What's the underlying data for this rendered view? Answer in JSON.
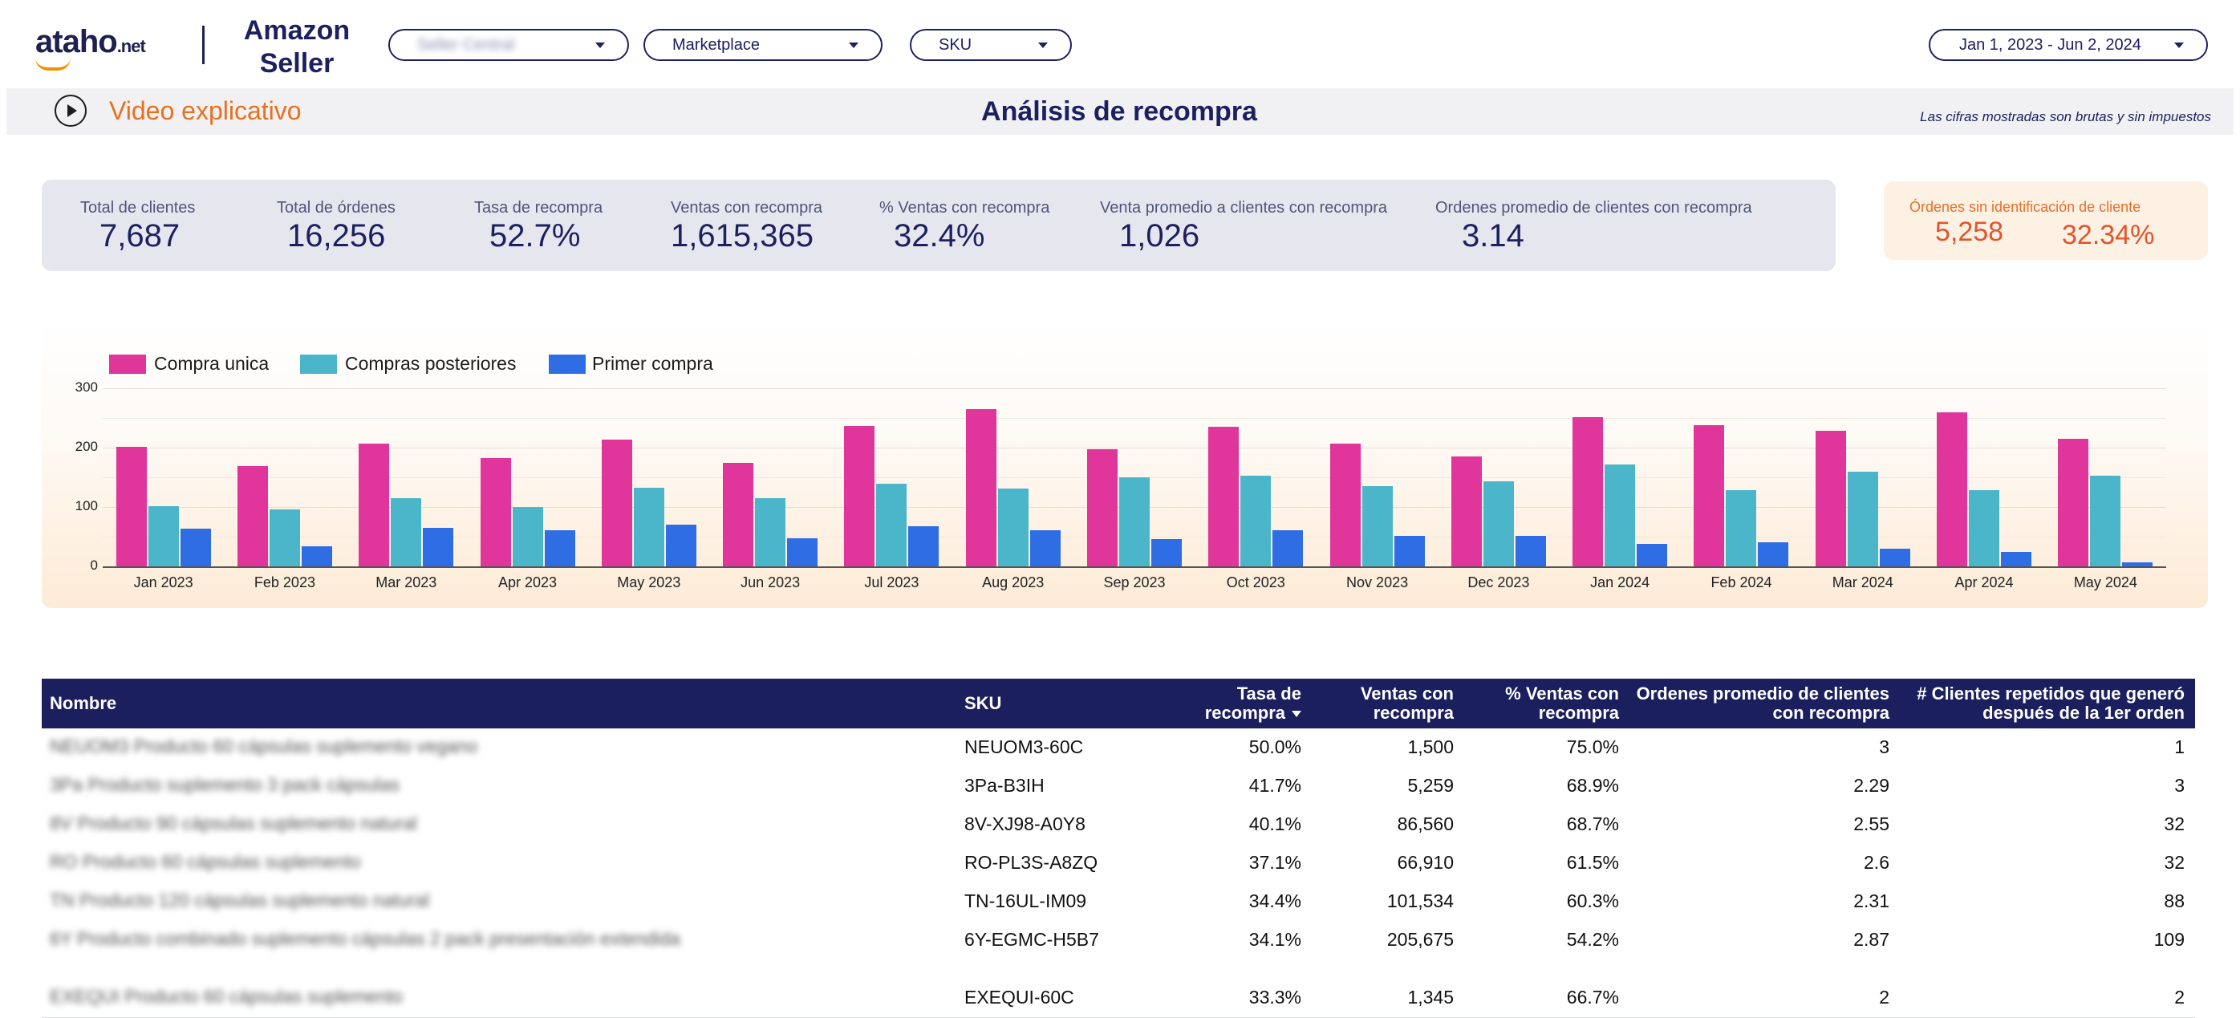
{
  "header": {
    "logo_main": "ataho",
    "logo_suffix": ".net",
    "brand_title": "Amazon Seller",
    "filters": {
      "account": "Seller Central",
      "marketplace": "Marketplace",
      "sku": "SKU",
      "date_range": "Jan 1, 2023 - Jun 2, 2024"
    }
  },
  "titlebar": {
    "video_link": "Video explicativo",
    "title": "Análisis de recompra",
    "disclaimer": "Las cifras mostradas son brutas y sin impuestos"
  },
  "kpis": [
    {
      "label": "Total de clientes",
      "value": "7,687"
    },
    {
      "label": "Total de órdenes",
      "value": "16,256"
    },
    {
      "label": "Tasa de recompra",
      "value": "52.7%"
    },
    {
      "label": "Ventas con recompra",
      "value": "1,615,365"
    },
    {
      "label": "% Ventas con recompra",
      "value": "32.4%"
    },
    {
      "label": "Venta promedio a clientes con recompra",
      "value": "1,026"
    },
    {
      "label": "Ordenes promedio de clientes con recompra",
      "value": "3.14"
    }
  ],
  "unidentified": {
    "label": "Órdenes sin identificación de cliente",
    "count": "5,258",
    "percent": "32.34%"
  },
  "colors": {
    "compra_unica": "#e0359a",
    "compras_posteriores": "#4bb6c9",
    "primer_compra": "#2f6de4",
    "navy": "#1b1f5e",
    "orange": "#e8701f"
  },
  "chart_data": {
    "type": "bar",
    "ylim": [
      0,
      300
    ],
    "yticks": [
      "0",
      "100",
      "200",
      "300"
    ],
    "categories": [
      "Jan 2023",
      "Feb 2023",
      "Mar 2023",
      "Apr 2023",
      "May 2023",
      "Jun 2023",
      "Jul 2023",
      "Aug 2023",
      "Sep 2023",
      "Oct 2023",
      "Nov 2023",
      "Dec 2023",
      "Jan 2024",
      "Feb 2024",
      "Mar 2024",
      "Apr 2024",
      "May 2024"
    ],
    "series": [
      {
        "name": "Compra unica",
        "color": "#e0359a",
        "values": [
          201,
          169,
          207,
          182,
          213,
          174,
          236,
          265,
          197,
          235,
          207,
          185,
          252,
          238,
          228,
          259,
          215
        ]
      },
      {
        "name": "Compras posteriores",
        "color": "#4bb6c9",
        "values": [
          102,
          96,
          115,
          100,
          133,
          115,
          139,
          131,
          150,
          153,
          135,
          143,
          172,
          128,
          159,
          129,
          153
        ]
      },
      {
        "name": "Primer compra",
        "color": "#2f6de4",
        "values": [
          63,
          34,
          65,
          61,
          70,
          47,
          67,
          61,
          46,
          61,
          51,
          51,
          38,
          40,
          30,
          24,
          7
        ]
      }
    ],
    "grid": true,
    "legend": "top-left"
  },
  "table": {
    "columns": [
      "Nombre",
      "SKU",
      "Tasa de recompra",
      "Ventas con recompra",
      "% Ventas con recompra",
      "Ordenes promedio de clientes con recompra",
      "# Clientes repetidos que generó después de la 1er orden"
    ],
    "rows": [
      {
        "name": "NEUOM3 Producto 60 cápsulas suplemento vegano",
        "sku": "NEUOM3-60C",
        "tasa": "50.0%",
        "ventas": "1,500",
        "pct": "75.0%",
        "ordenes": "3",
        "clientes": "1"
      },
      {
        "name": "3Pa Producto suplemento 3 pack cápsulas",
        "sku": "3Pa-B3IH",
        "tasa": "41.7%",
        "ventas": "5,259",
        "pct": "68.9%",
        "ordenes": "2.29",
        "clientes": "3"
      },
      {
        "name": "8V Producto 90 cápsulas suplemento natural",
        "sku": "8V-XJ98-A0Y8",
        "tasa": "40.1%",
        "ventas": "86,560",
        "pct": "68.7%",
        "ordenes": "2.55",
        "clientes": "32"
      },
      {
        "name": "RO Producto 60 cápsulas suplemento",
        "sku": "RO-PL3S-A8ZQ",
        "tasa": "37.1%",
        "ventas": "66,910",
        "pct": "61.5%",
        "ordenes": "2.6",
        "clientes": "32"
      },
      {
        "name": "TN Producto 120 cápsulas suplemento natural",
        "sku": "TN-16UL-IM09",
        "tasa": "34.4%",
        "ventas": "101,534",
        "pct": "60.3%",
        "ordenes": "2.31",
        "clientes": "88"
      },
      {
        "name": "6Y Producto combinado suplemento cápsulas 2 pack presentación extendida",
        "sku": "6Y-EGMC-H5B7",
        "tasa": "34.1%",
        "ventas": "205,675",
        "pct": "54.2%",
        "ordenes": "2.87",
        "clientes": "109"
      },
      {
        "name": "EXEQUI Producto 60 cápsulas suplemento",
        "sku": "EXEQUI-60C",
        "tasa": "33.3%",
        "ventas": "1,345",
        "pct": "66.7%",
        "ordenes": "2",
        "clientes": "2"
      }
    ]
  }
}
